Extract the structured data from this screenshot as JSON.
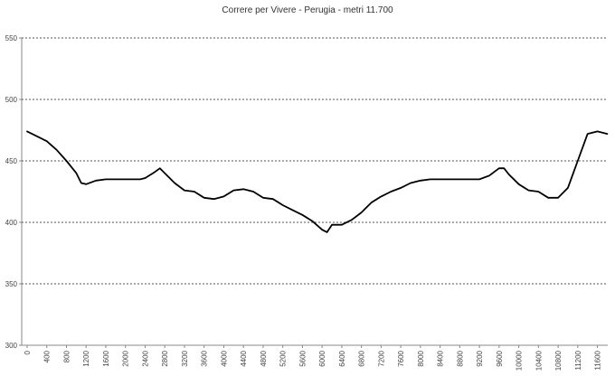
{
  "chart_data": {
    "type": "line",
    "title": "Correre per Vivere - Perugia - metri 11.700",
    "xlabel": "",
    "ylabel": "",
    "ylim": [
      300,
      550
    ],
    "xlim": [
      0,
      11700
    ],
    "yticks": [
      300,
      350,
      400,
      450,
      500,
      550
    ],
    "ytick_labels": [
      "300",
      "350",
      "400",
      "450",
      "500",
      "550"
    ],
    "xtick_labels": [
      "0",
      "400",
      "800",
      "1200",
      "1600",
      "2000",
      "2400",
      "2800",
      "3200",
      "3600",
      "4000",
      "4400",
      "4800",
      "5200",
      "5600",
      "6000",
      "6400",
      "6800",
      "7200",
      "7600",
      "8000",
      "8400",
      "8800",
      "9200",
      "9600",
      "10000",
      "10400",
      "10800",
      "11200",
      "11600"
    ],
    "grid": "horizontal-dotted",
    "legend": "none",
    "series": [
      {
        "x": [
          0,
          200,
          400,
          600,
          800,
          1000,
          1100,
          1200,
          1400,
          1600,
          2000,
          2300,
          2400,
          2600,
          2700,
          2800,
          3000,
          3200,
          3400,
          3600,
          3800,
          4000,
          4200,
          4400,
          4600,
          4800,
          5000,
          5200,
          5400,
          5600,
          5800,
          6000,
          6100,
          6200,
          6400,
          6600,
          6800,
          7000,
          7200,
          7400,
          7600,
          7800,
          8000,
          8200,
          8400,
          8800,
          9200,
          9400,
          9600,
          9700,
          9800,
          10000,
          10200,
          10400,
          10600,
          10800,
          11000,
          11200,
          11400,
          11600,
          11800
        ],
        "values": [
          474,
          470,
          466,
          459,
          450,
          440,
          432,
          431,
          434,
          435,
          435,
          435,
          436,
          441,
          444,
          440,
          432,
          426,
          425,
          420,
          419,
          421,
          426,
          427,
          425,
          420,
          419,
          414,
          410,
          406,
          401,
          394,
          392,
          398,
          398,
          402,
          408,
          416,
          421,
          425,
          428,
          432,
          434,
          435,
          435,
          435,
          435,
          438,
          444,
          444,
          439,
          431,
          426,
          425,
          420,
          420,
          428,
          450,
          472,
          474,
          472
        ]
      }
    ],
    "colors": {
      "line": "#000000",
      "grid": "#555555",
      "axis": "#888888"
    }
  }
}
